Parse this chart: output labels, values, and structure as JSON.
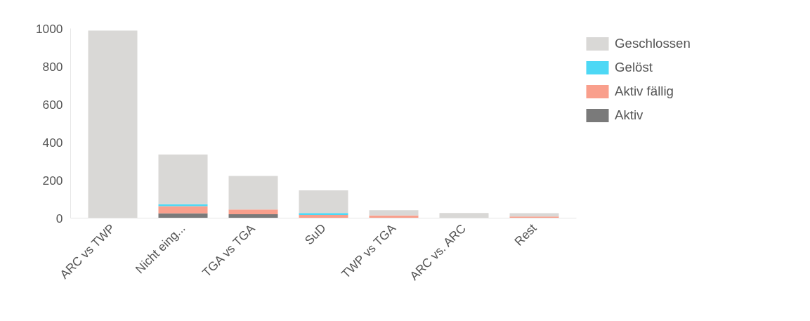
{
  "chart_data": {
    "type": "bar",
    "stacked": true,
    "categories": [
      "ARC vs TWP",
      "Nicht eing...",
      "TGA vs TGA",
      "SuD",
      "TWP vs TGA",
      "ARC vs. ARC",
      "Rest"
    ],
    "series": [
      {
        "name": "Aktiv",
        "color": "#7a7a7a",
        "values": [
          0,
          25,
          20,
          0,
          0,
          0,
          0
        ]
      },
      {
        "name": "Aktiv fällig",
        "color": "#f99f8c",
        "values": [
          0,
          38,
          25,
          17,
          14,
          0,
          8
        ]
      },
      {
        "name": "Gelöst",
        "color": "#4dd8f5",
        "values": [
          0,
          10,
          0,
          10,
          0,
          0,
          0
        ]
      },
      {
        "name": "Geschlossen",
        "color": "#d9d8d6",
        "values": [
          989,
          262,
          177,
          119,
          28,
          27,
          18
        ]
      }
    ],
    "ylim": [
      0,
      1000
    ],
    "yticks": [
      0,
      200,
      400,
      600,
      800,
      1000
    ],
    "grid": false,
    "legend": "top right"
  }
}
